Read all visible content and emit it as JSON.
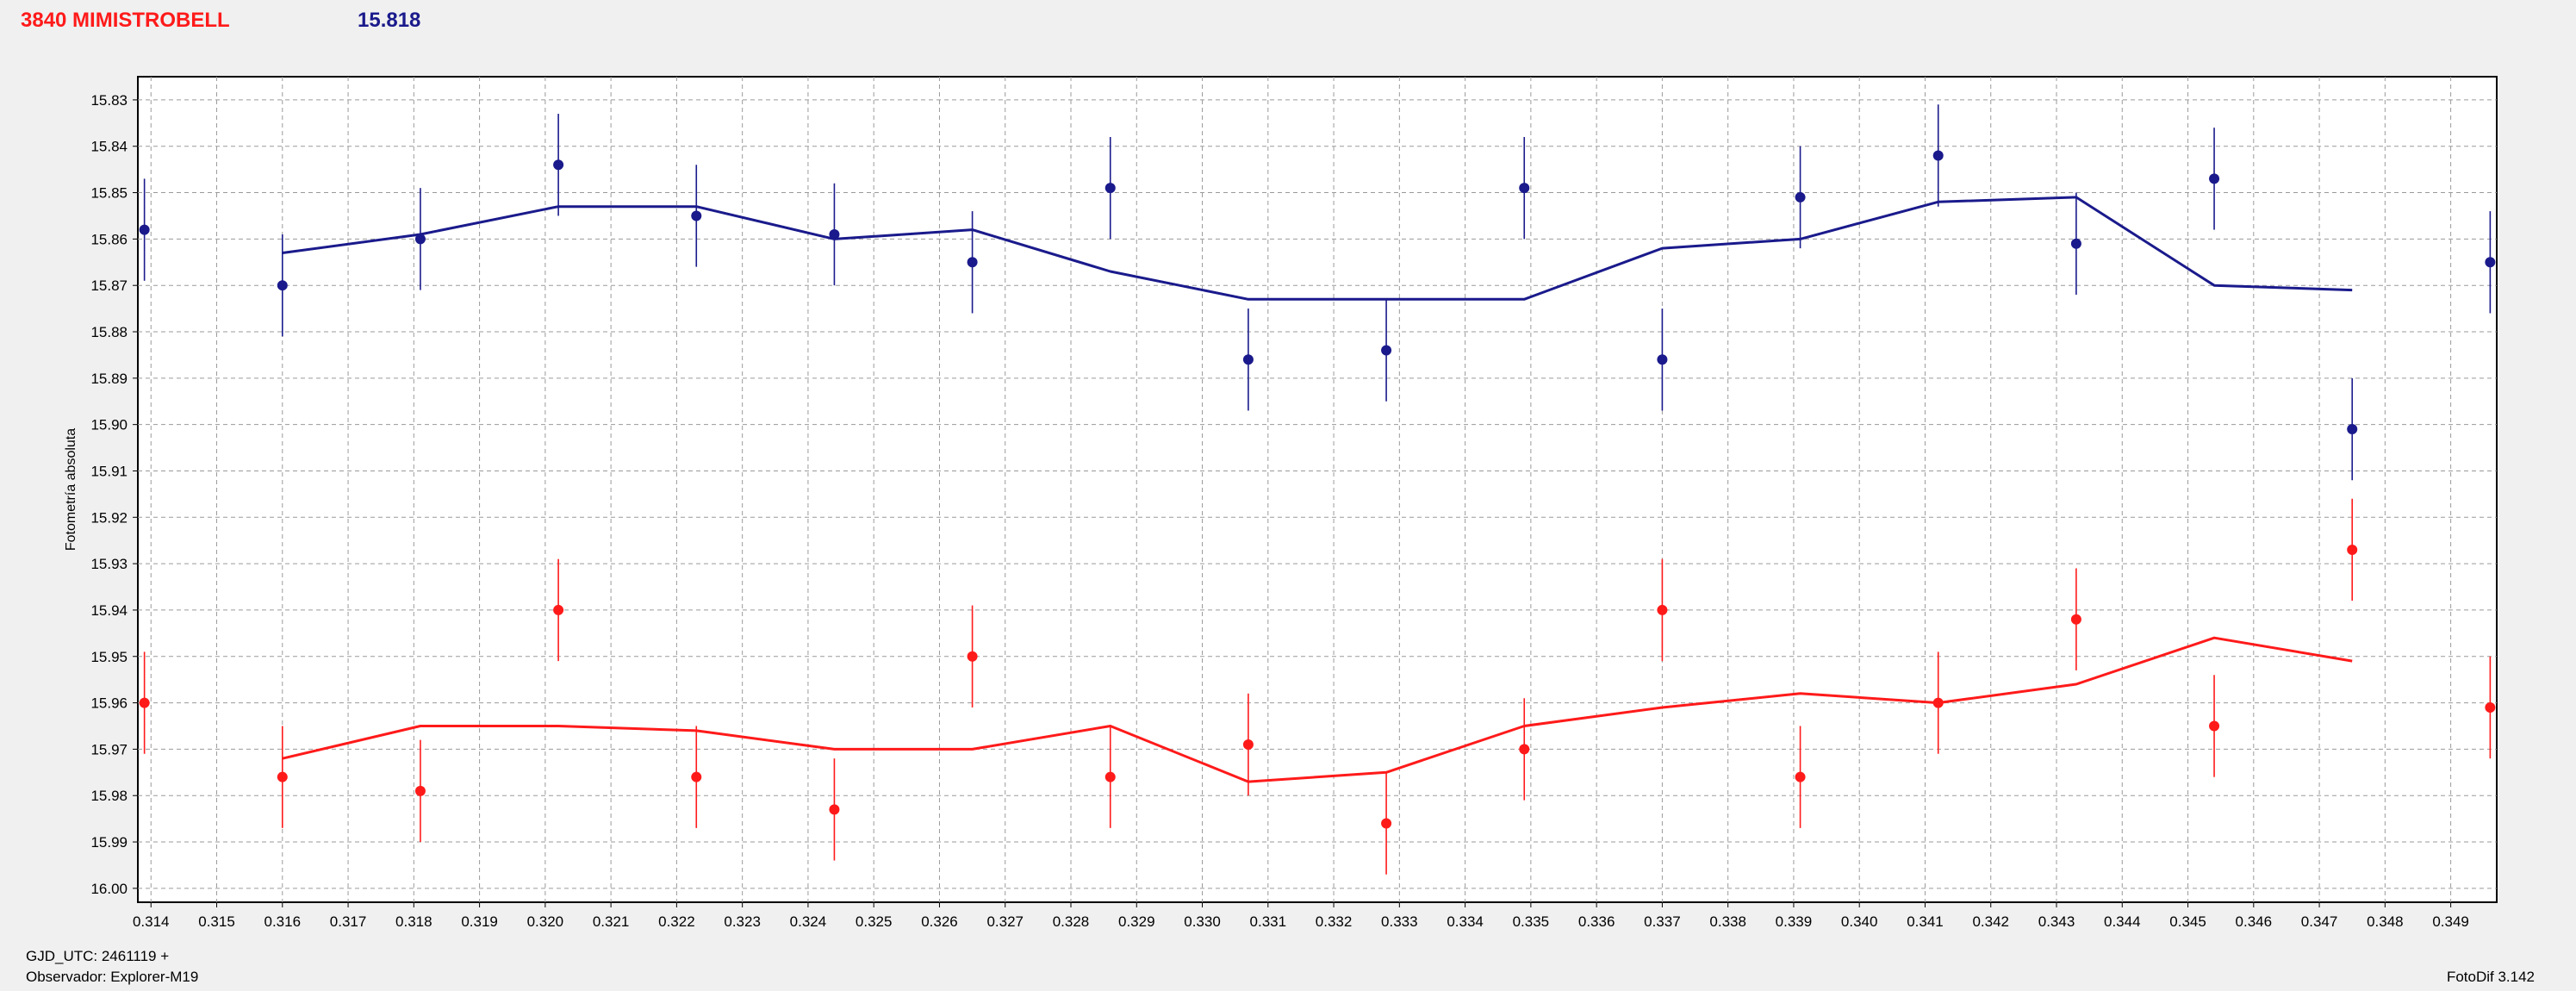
{
  "header": {
    "star_name": "3840 MIMISTROBELL",
    "magnitude": "15.818"
  },
  "footer": {
    "gjd": "GJD_UTC: 2461119 +",
    "observer": "Observador: Explorer-M19",
    "software": "FotoDif 3.142"
  },
  "colors": {
    "blue_series": "#1a1a8c",
    "red_series": "#ff1a1a",
    "grid": "#9a9a9a"
  },
  "chart_data": {
    "type": "scatter",
    "ylabel": "Fotometría absoluta",
    "xlabel": "",
    "xlim": [
      0.3138,
      0.3497
    ],
    "ylim": [
      15.825,
      16.003
    ],
    "y_inverted": true,
    "grid": true,
    "x_ticks": [
      "0.314",
      "0.315",
      "0.316",
      "0.317",
      "0.318",
      "0.319",
      "0.320",
      "0.321",
      "0.322",
      "0.323",
      "0.324",
      "0.325",
      "0.326",
      "0.327",
      "0.328",
      "0.329",
      "0.330",
      "0.331",
      "0.332",
      "0.333",
      "0.334",
      "0.335",
      "0.336",
      "0.337",
      "0.338",
      "0.339",
      "0.340",
      "0.341",
      "0.342",
      "0.343",
      "0.344",
      "0.345",
      "0.346",
      "0.347",
      "0.348",
      "0.349"
    ],
    "y_ticks": [
      "15.83",
      "15.84",
      "15.85",
      "15.86",
      "15.87",
      "15.88",
      "15.89",
      "15.90",
      "15.91",
      "15.92",
      "15.93",
      "15.94",
      "15.95",
      "15.96",
      "15.97",
      "15.98",
      "15.99",
      "16.00"
    ],
    "series": [
      {
        "color": "#1a1a8c",
        "x": [
          0.3139,
          0.316,
          0.3181,
          0.3202,
          0.3223,
          0.3244,
          0.3265,
          0.3286,
          0.3307,
          0.3328,
          0.3349,
          0.337,
          0.3391,
          0.3412,
          0.3433,
          0.3454,
          0.3475,
          0.3496
        ],
        "y": [
          15.858,
          15.87,
          15.86,
          15.844,
          15.855,
          15.859,
          15.865,
          15.849,
          15.886,
          15.884,
          15.849,
          15.886,
          15.851,
          15.842,
          15.861,
          15.847,
          15.901,
          15.865
        ],
        "err": [
          0.011,
          0.011,
          0.011,
          0.011,
          0.011,
          0.011,
          0.011,
          0.011,
          0.011,
          0.011,
          0.011,
          0.011,
          0.011,
          0.011,
          0.011,
          0.011,
          0.011,
          0.011
        ],
        "fit_x": [
          0.316,
          0.3181,
          0.3202,
          0.3223,
          0.3244,
          0.3265,
          0.3286,
          0.3307,
          0.3328,
          0.3349,
          0.337,
          0.3391,
          0.3412,
          0.3433,
          0.3454,
          0.3475
        ],
        "fit_y": [
          15.863,
          15.859,
          15.853,
          15.853,
          15.86,
          15.858,
          15.867,
          15.873,
          15.873,
          15.873,
          15.862,
          15.86,
          15.852,
          15.851,
          15.87,
          15.871
        ]
      },
      {
        "color": "#ff1a1a",
        "x": [
          0.3139,
          0.316,
          0.3181,
          0.3202,
          0.3223,
          0.3244,
          0.3265,
          0.3286,
          0.3307,
          0.3328,
          0.3349,
          0.337,
          0.3391,
          0.3412,
          0.3433,
          0.3454,
          0.3475,
          0.3496
        ],
        "y": [
          15.96,
          15.976,
          15.979,
          15.94,
          15.976,
          15.983,
          15.95,
          15.976,
          15.969,
          15.986,
          15.97,
          15.94,
          15.976,
          15.96,
          15.942,
          15.965,
          15.927,
          15.961
        ],
        "err": [
          0.011,
          0.011,
          0.011,
          0.011,
          0.011,
          0.011,
          0.011,
          0.011,
          0.011,
          0.011,
          0.011,
          0.011,
          0.011,
          0.011,
          0.011,
          0.011,
          0.011,
          0.011
        ],
        "fit_x": [
          0.316,
          0.3181,
          0.3202,
          0.3223,
          0.3244,
          0.3265,
          0.3286,
          0.3307,
          0.3328,
          0.3349,
          0.337,
          0.3391,
          0.3412,
          0.3433,
          0.3454,
          0.3475
        ],
        "fit_y": [
          15.972,
          15.965,
          15.965,
          15.966,
          15.97,
          15.97,
          15.965,
          15.977,
          15.975,
          15.965,
          15.961,
          15.958,
          15.96,
          15.956,
          15.946,
          15.951
        ]
      }
    ]
  }
}
